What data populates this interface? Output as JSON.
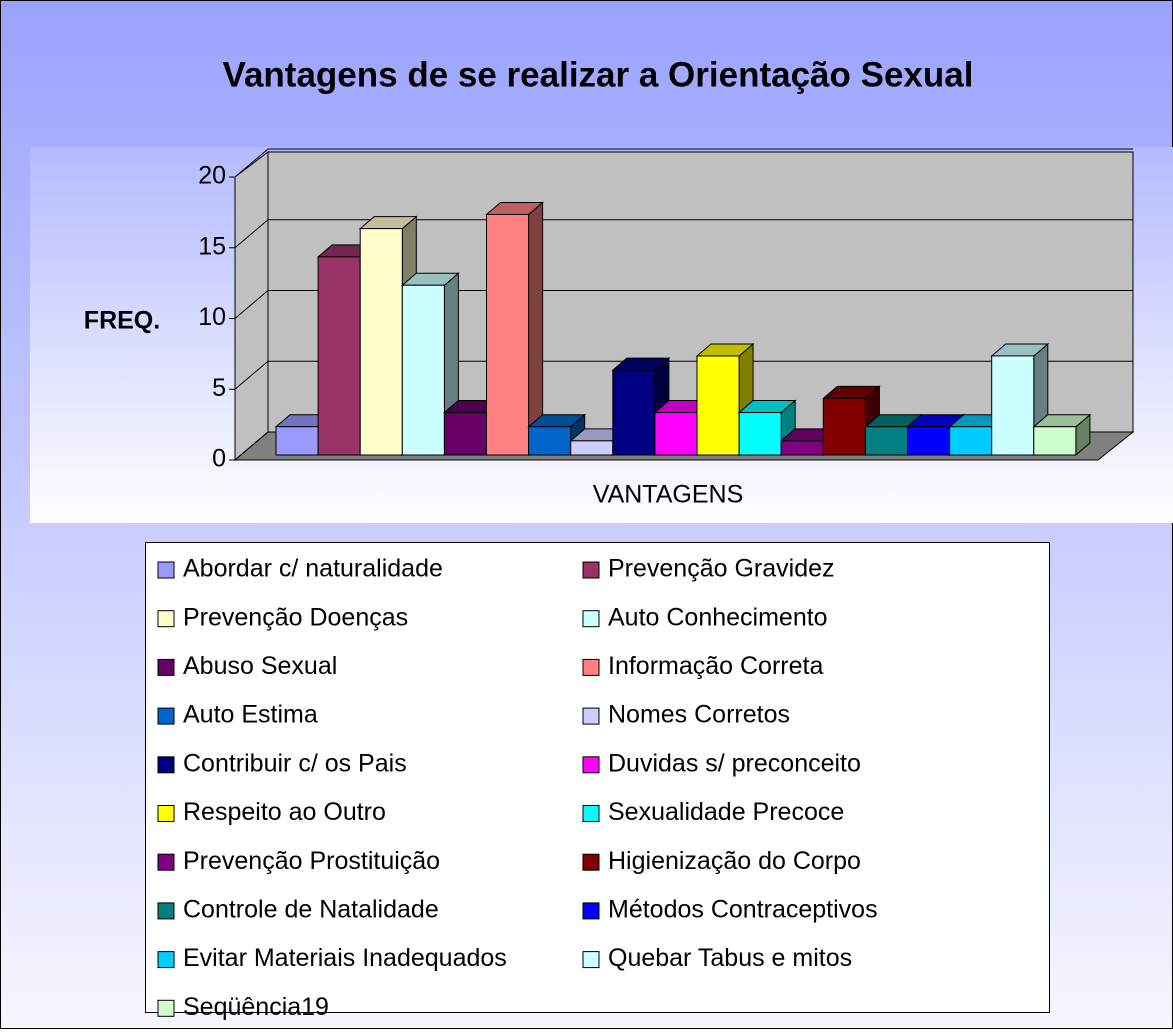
{
  "chart_data": {
    "type": "bar3d",
    "title": "Vantagens de se realizar a Orientação Sexual",
    "y_label": "FREQ.",
    "categories": [
      "VANTAGENS"
    ],
    "ylim": [
      0,
      20
    ],
    "yticks": [
      0,
      5,
      10,
      15,
      20
    ],
    "grid": true,
    "series": [
      {
        "name": "Abordar c/ naturalidade",
        "color": "#9999ff",
        "values": [
          2
        ]
      },
      {
        "name": "Prevenção Gravidez",
        "color": "#993366",
        "values": [
          14
        ]
      },
      {
        "name": "Prevenção Doenças",
        "color": "#ffffcc",
        "values": [
          16
        ]
      },
      {
        "name": "Auto Conhecimento",
        "color": "#ccffff",
        "values": [
          12
        ]
      },
      {
        "name": "Abuso Sexual",
        "color": "#660066",
        "values": [
          3
        ]
      },
      {
        "name": "Informação Correta",
        "color": "#ff8080",
        "values": [
          17
        ]
      },
      {
        "name": "Auto Estima",
        "color": "#0066cc",
        "values": [
          2
        ]
      },
      {
        "name": "Nomes Corretos",
        "color": "#ccccff",
        "values": [
          1
        ]
      },
      {
        "name": "Contribuir c/ os Pais",
        "color": "#000080",
        "values": [
          6
        ]
      },
      {
        "name": "Duvidas s/ preconceito",
        "color": "#ff00ff",
        "values": [
          3
        ]
      },
      {
        "name": "Respeito ao Outro",
        "color": "#ffff00",
        "values": [
          7
        ]
      },
      {
        "name": "Sexualidade Precoce",
        "color": "#00ffff",
        "values": [
          3
        ]
      },
      {
        "name": "Prevenção Prostituição",
        "color": "#800080",
        "values": [
          1
        ]
      },
      {
        "name": "Higienização do Corpo",
        "color": "#800000",
        "values": [
          4
        ]
      },
      {
        "name": "Controle de Natalidade",
        "color": "#008080",
        "values": [
          2
        ]
      },
      {
        "name": "Métodos Contraceptivos",
        "color": "#0000ff",
        "values": [
          2
        ]
      },
      {
        "name": "Evitar Materiais Inadequados",
        "color": "#00ccff",
        "values": [
          2
        ]
      },
      {
        "name": "Quebar Tabus e mitos",
        "color": "#ccffff",
        "values": [
          7
        ]
      },
      {
        "name": "Seqüência19",
        "color": "#ccffcc",
        "values": [
          2
        ]
      }
    ]
  }
}
